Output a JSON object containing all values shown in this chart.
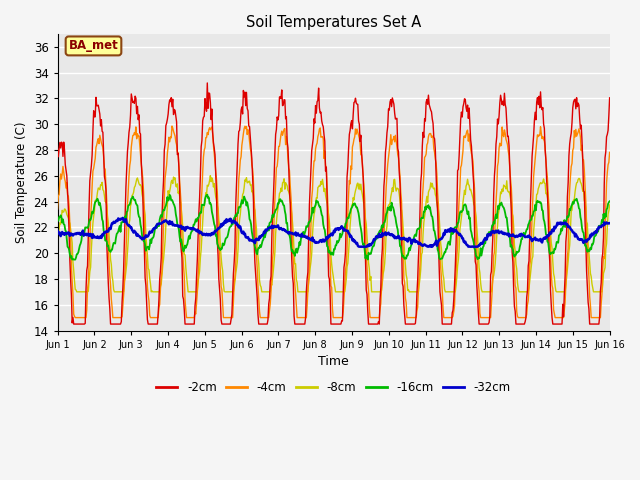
{
  "title": "Soil Temperatures Set A",
  "xlabel": "Time",
  "ylabel": "Soil Temperature (C)",
  "ylim": [
    14,
    37
  ],
  "yticks": [
    14,
    16,
    18,
    20,
    22,
    24,
    26,
    28,
    30,
    32,
    34,
    36
  ],
  "xtick_labels": [
    "Jun 1",
    "Jun 2",
    "Jun 3",
    "Jun 4",
    "Jun 5",
    "Jun 6",
    "Jun 7",
    "Jun 8",
    "Jun 9",
    "Jun 10",
    "Jun 11",
    "Jun 12",
    "Jun 13",
    "Jun 14",
    "Jun 15",
    "Jun 16"
  ],
  "annotation": "BA_met",
  "series_colors": [
    "#dd0000",
    "#ff8800",
    "#cccc00",
    "#00bb00",
    "#0000cc"
  ],
  "series_labels": [
    "-2cm",
    "-4cm",
    "-8cm",
    "-16cm",
    "-32cm"
  ],
  "bg_color": "#e8e8e8",
  "grid_color": "#ffffff",
  "fig_bg": "#f5f5f5",
  "n_days": 15,
  "points_per_day": 48
}
